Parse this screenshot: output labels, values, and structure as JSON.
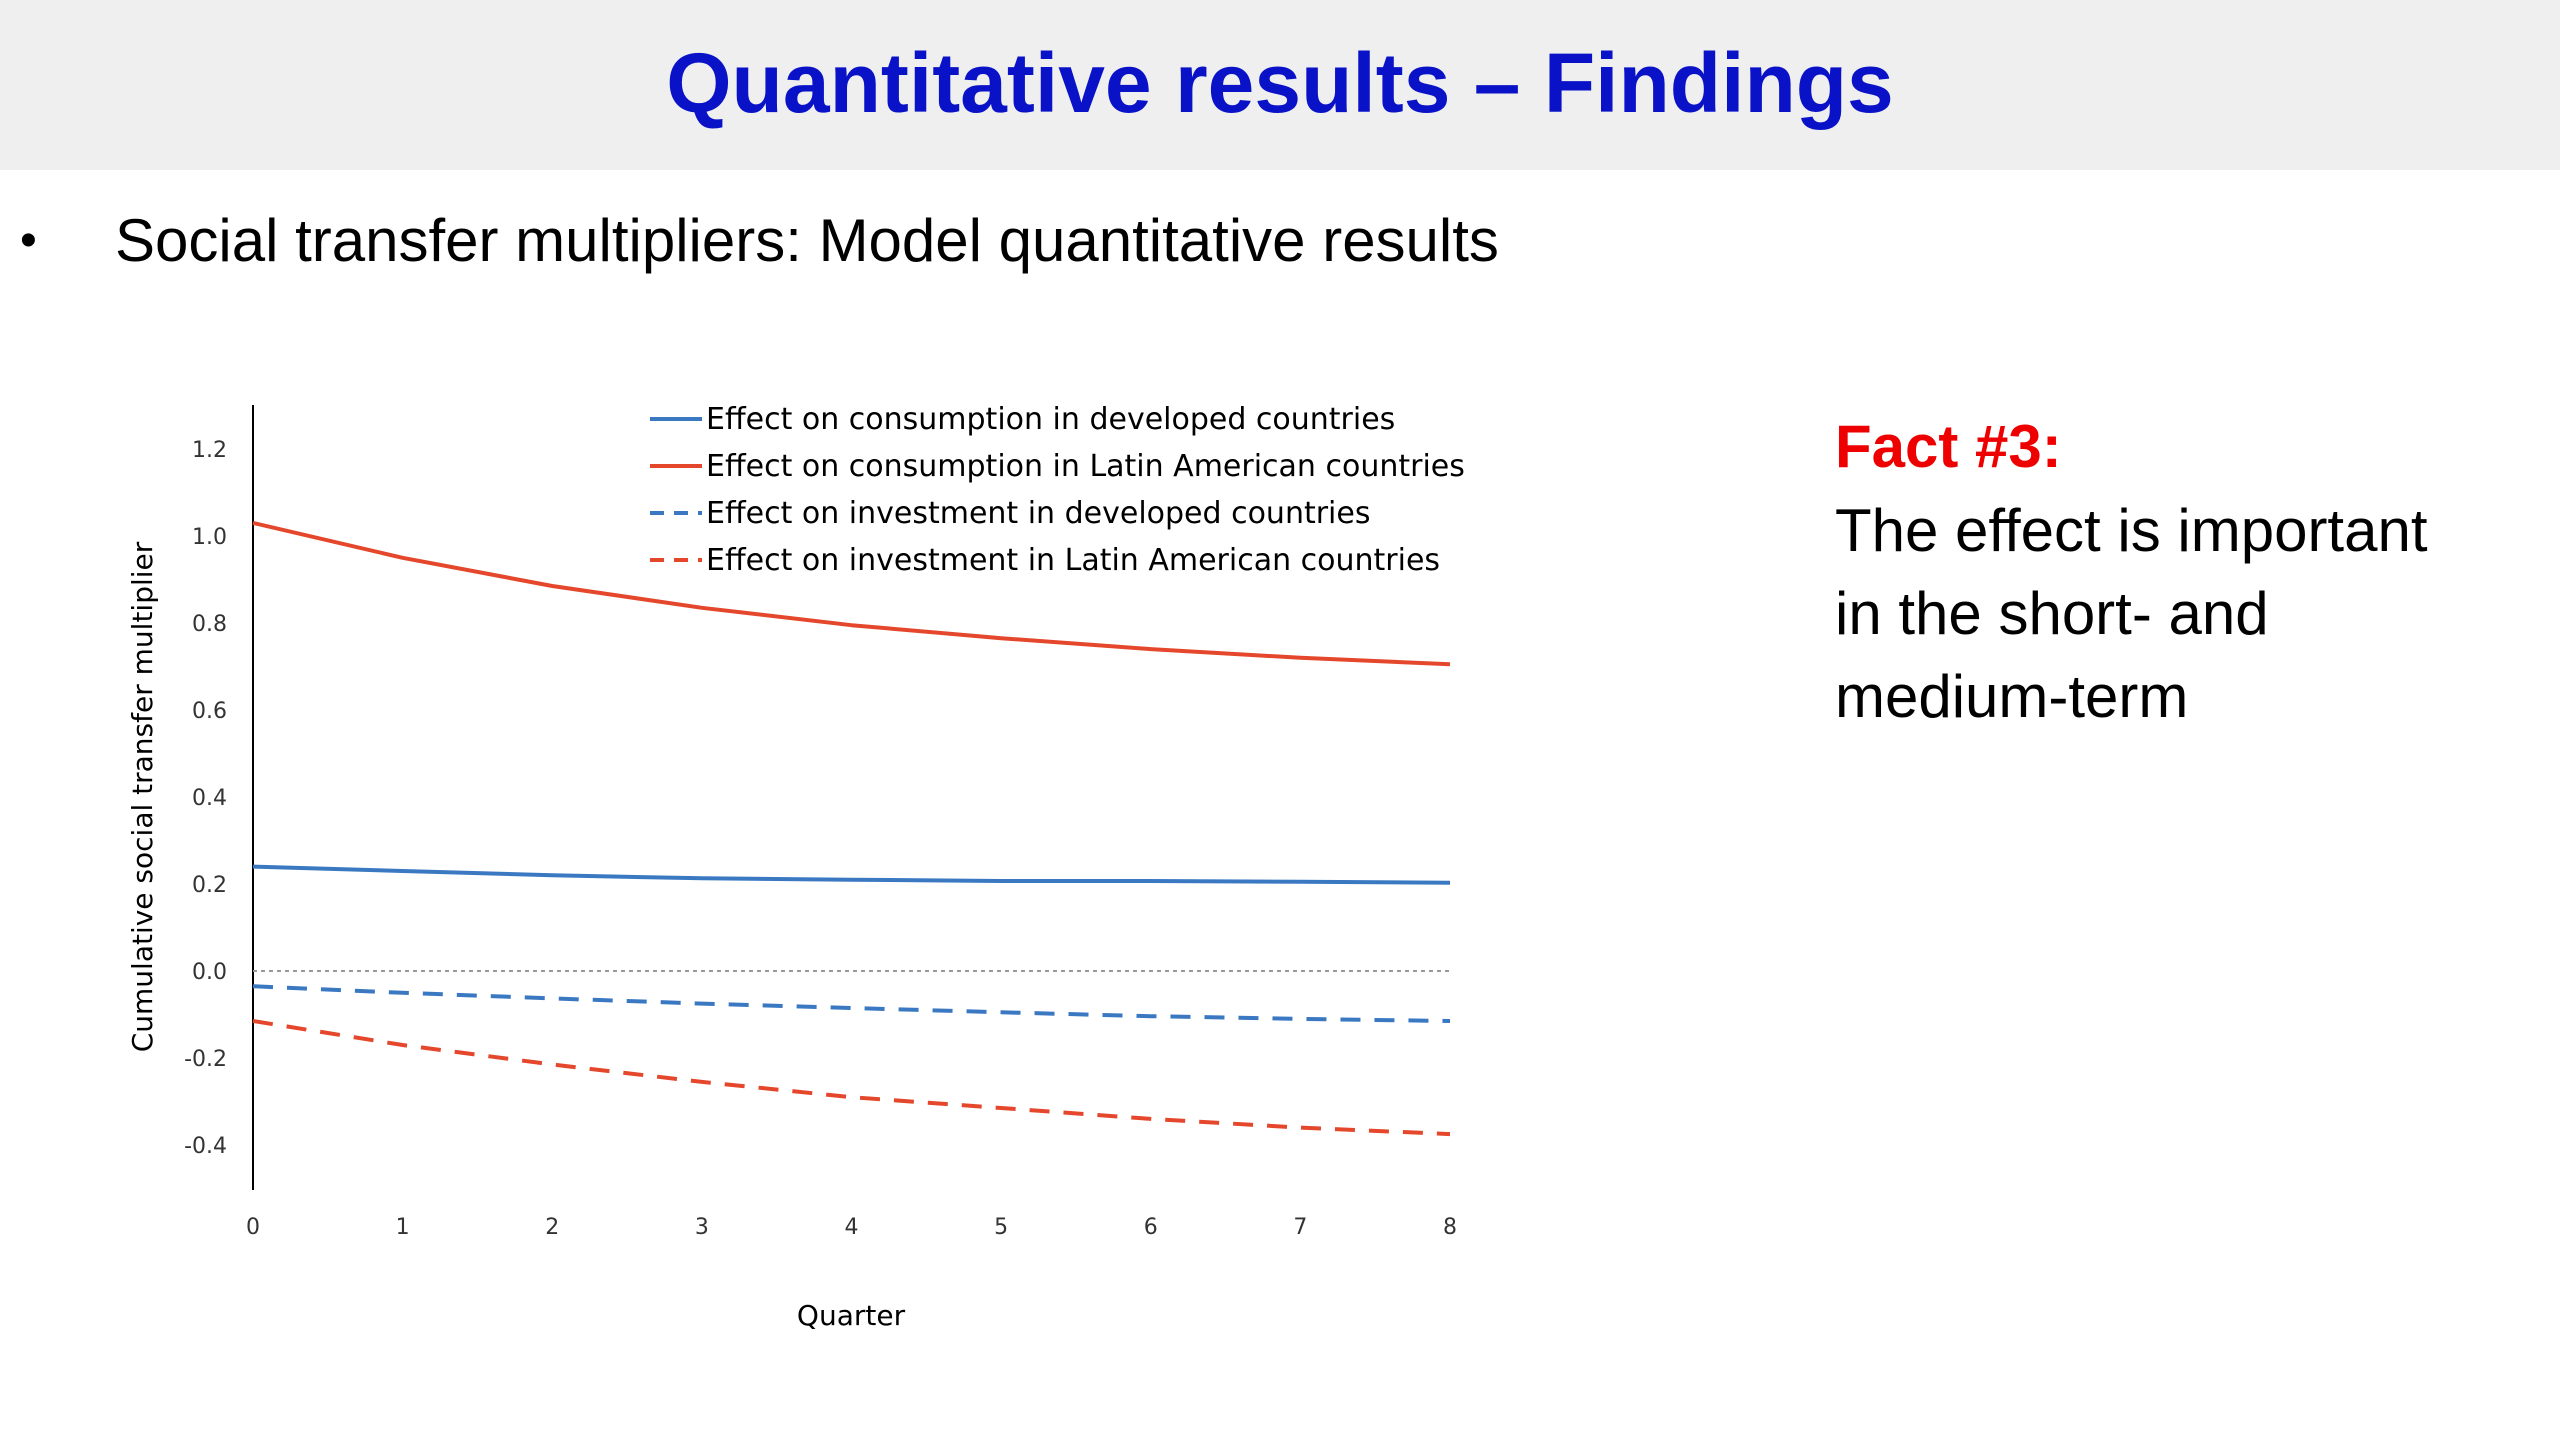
{
  "slide": {
    "title": "Quantitative results – Findings",
    "bullet": "Social transfer multipliers: Model quantitative results",
    "bullet_symbol": "•"
  },
  "fact": {
    "title": "Fact #3:",
    "body": "The effect is important\nin the short- and\nmedium-term",
    "title_color": "#ee0000"
  },
  "colors": {
    "title": "#0a12c8",
    "developed": "#3a78c2",
    "latin_america": "#e4472b",
    "zero_line": "#999999"
  },
  "chart_data": {
    "type": "line",
    "title": "",
    "xlabel": "Quarter",
    "ylabel": "Cumulative social transfer multiplier",
    "x": [
      0,
      1,
      2,
      3,
      4,
      5,
      6,
      7,
      8
    ],
    "xlim": [
      0,
      8
    ],
    "ylim": [
      -0.4,
      1.2
    ],
    "yticks": [
      -0.4,
      -0.2,
      0.0,
      0.2,
      0.4,
      0.6,
      0.8,
      1.0,
      1.2
    ],
    "ytick_labels": [
      "-0.4",
      "-0.2",
      "0.0",
      "0.2",
      "0.4",
      "0.6",
      "0.8",
      "1.0",
      "1.2"
    ],
    "xtick_labels": [
      "0",
      "1",
      "2",
      "3",
      "4",
      "5",
      "6",
      "7",
      "8"
    ],
    "grid": false,
    "zero_line": true,
    "legend_position": "top",
    "series": [
      {
        "name": "Effect on consumption in developed countries",
        "style": "solid",
        "color": "#3a78c2",
        "values": [
          0.24,
          0.23,
          0.22,
          0.213,
          0.21,
          0.207,
          0.207,
          0.205,
          0.203
        ]
      },
      {
        "name": "Effect on consumption in Latin American countries",
        "style": "solid",
        "color": "#e4472b",
        "values": [
          1.03,
          0.95,
          0.885,
          0.835,
          0.795,
          0.765,
          0.74,
          0.72,
          0.705
        ]
      },
      {
        "name": "Effect on investment in developed countries",
        "style": "dashed",
        "color": "#3a78c2",
        "values": [
          -0.035,
          -0.05,
          -0.063,
          -0.075,
          -0.085,
          -0.095,
          -0.104,
          -0.11,
          -0.115
        ]
      },
      {
        "name": "Effect on investment in Latin American countries",
        "style": "dashed",
        "color": "#e4472b",
        "values": [
          -0.115,
          -0.17,
          -0.215,
          -0.255,
          -0.29,
          -0.315,
          -0.34,
          -0.36,
          -0.375
        ]
      }
    ]
  }
}
